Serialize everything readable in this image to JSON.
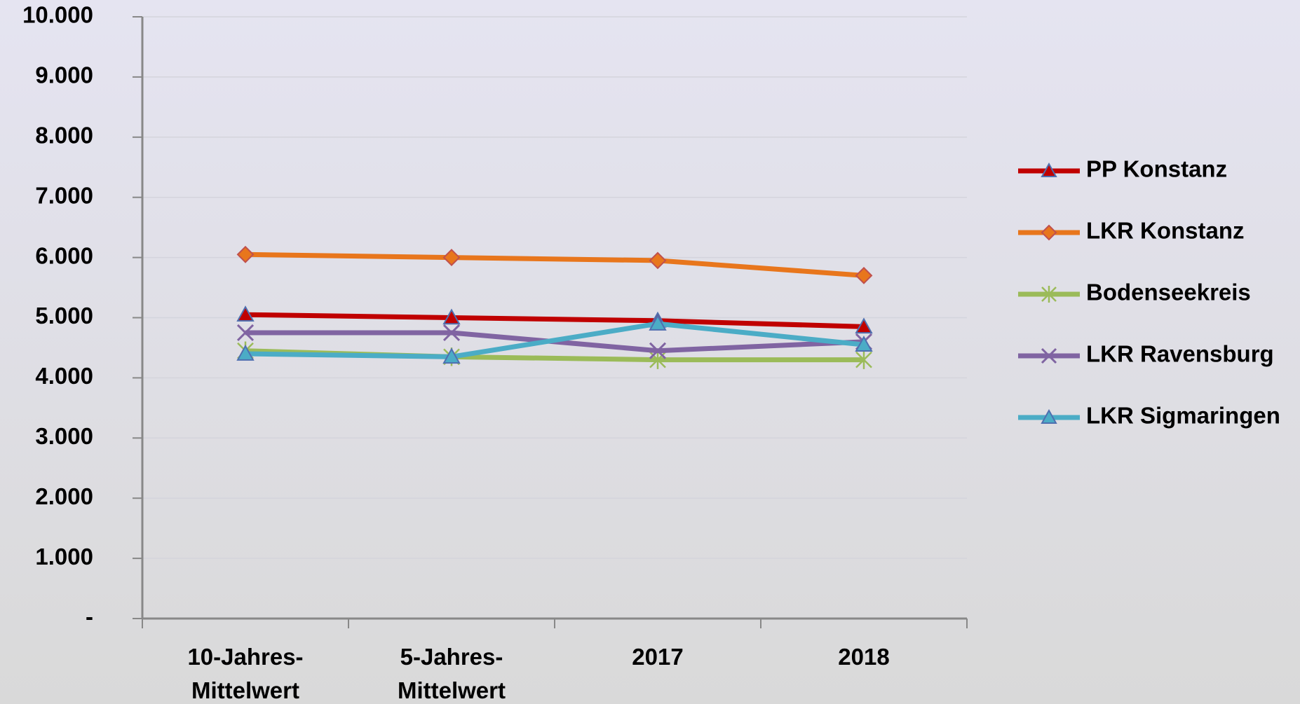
{
  "chart_data": {
    "type": "line",
    "categories": [
      "10-Jahres-\nMittelwert",
      "5-Jahres-\nMittelwert",
      "2017",
      "2018"
    ],
    "series": [
      {
        "name": "PP Konstanz",
        "color": "#c00000",
        "marker": "triangle",
        "values": [
          5050,
          5000,
          4950,
          4850
        ]
      },
      {
        "name": "LKR Konstanz",
        "color": "#e8761c",
        "marker": "diamond",
        "values": [
          6050,
          6000,
          5950,
          5700
        ]
      },
      {
        "name": "Bodenseekreis",
        "color": "#9bbb59",
        "marker": "star",
        "values": [
          4450,
          4350,
          4300,
          4300
        ]
      },
      {
        "name": "LKR Ravensburg",
        "color": "#8064a2",
        "marker": "x",
        "values": [
          4750,
          4750,
          4450,
          4600
        ]
      },
      {
        "name": "LKR Sigmaringen",
        "color": "#4bacc6",
        "marker": "triangle",
        "values": [
          4400,
          4350,
          4900,
          4550
        ]
      }
    ],
    "ylim": [
      0,
      10000
    ],
    "yticks": [
      {
        "value": 0,
        "label": "-"
      },
      {
        "value": 1000,
        "label": "1.000"
      },
      {
        "value": 2000,
        "label": "2.000"
      },
      {
        "value": 3000,
        "label": "3.000"
      },
      {
        "value": 4000,
        "label": "4.000"
      },
      {
        "value": 5000,
        "label": "5.000"
      },
      {
        "value": 6000,
        "label": "6.000"
      },
      {
        "value": 7000,
        "label": "7.000"
      },
      {
        "value": 8000,
        "label": "8.000"
      },
      {
        "value": 9000,
        "label": "9.000"
      },
      {
        "value": 10000,
        "label": "10.000"
      }
    ],
    "grid": true,
    "legend": "right"
  }
}
